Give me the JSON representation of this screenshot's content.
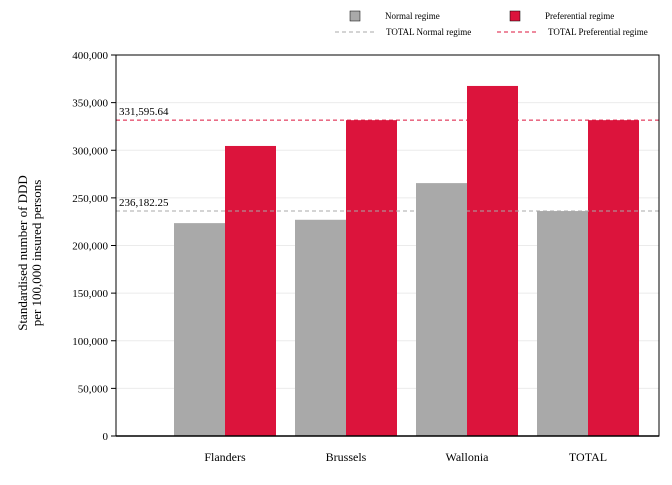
{
  "chart_data": {
    "type": "bar",
    "categories": [
      "Flanders",
      "Brussels",
      "Wallonia",
      "TOTAL"
    ],
    "series": [
      {
        "name": "Normal regime",
        "color": "#a9a9a9",
        "values": [
          223500,
          227000,
          265500,
          236182.25
        ]
      },
      {
        "name": "Preferential regime",
        "color": "#dc143c",
        "values": [
          304500,
          331595.64,
          367500,
          331595.64
        ]
      }
    ],
    "reference_lines": [
      {
        "name": "TOTAL Normal regime",
        "value": 236182.25,
        "label": "236,182.25",
        "color": "#a9a9a9",
        "style": "dashed"
      },
      {
        "name": "TOTAL Preferential regime",
        "value": 331595.64,
        "label": "331,595.64",
        "color": "#dc143c",
        "style": "dashed"
      }
    ],
    "ylabel_lines": [
      "Standardised number of DDD",
      "per 100,000 insured persons"
    ],
    "ylim": [
      0,
      400000
    ],
    "yticks": [
      0,
      50000,
      100000,
      150000,
      200000,
      250000,
      300000,
      350000,
      400000
    ],
    "ytick_labels": [
      "0",
      "50,000",
      "100,000",
      "150,000",
      "200,000",
      "250,000",
      "300,000",
      "350,000",
      "400,000"
    ],
    "grid": true,
    "legend_position": "top"
  }
}
